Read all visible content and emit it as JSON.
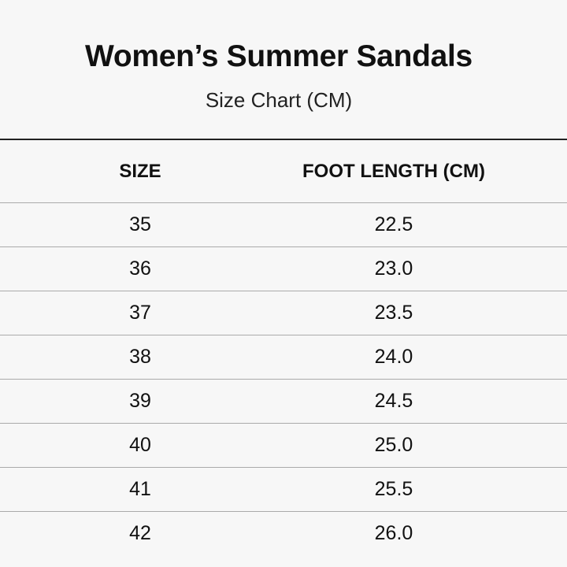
{
  "title": "Women’s Summer Sandals",
  "subtitle": "Size Chart (CM)",
  "columns": [
    "SIZE",
    "FOOT LENGTH (CM)"
  ],
  "rows": [
    [
      "35",
      "22.5"
    ],
    [
      "36",
      "23.0"
    ],
    [
      "37",
      "23.5"
    ],
    [
      "38",
      "24.0"
    ],
    [
      "39",
      "24.5"
    ],
    [
      "40",
      "25.0"
    ],
    [
      "41",
      "25.5"
    ],
    [
      "42",
      "26.0"
    ]
  ]
}
